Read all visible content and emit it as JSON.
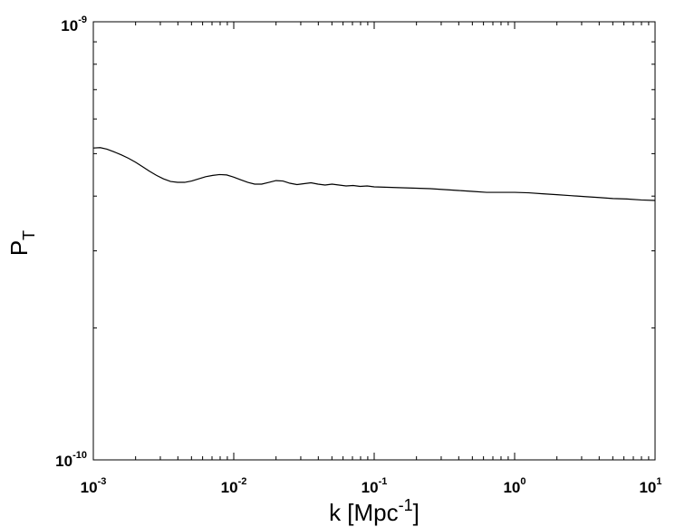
{
  "chart_data": {
    "type": "line",
    "xscale": "log",
    "yscale": "log",
    "xlim": [
      0.001,
      10
    ],
    "ylim": [
      1e-10,
      1e-09
    ],
    "grid": false,
    "x_tick_labels": [
      {
        "base": "10",
        "exp": "-3"
      },
      {
        "base": "10",
        "exp": "-2"
      },
      {
        "base": "10",
        "exp": "-1"
      },
      {
        "base": "10",
        "exp": "0"
      },
      {
        "base": "10",
        "exp": "1"
      }
    ],
    "y_tick_labels": [
      {
        "base": "10",
        "exp": "-10"
      },
      {
        "base": "10",
        "exp": "-9"
      }
    ],
    "xlabel": {
      "main": "k [Mpc",
      "exp": "-1",
      "close": "]"
    },
    "ylabel": {
      "main": "P",
      "sub": "T"
    },
    "series": [
      {
        "color": "#000000",
        "points": [
          [
            0.001,
            5.15e-10
          ],
          [
            0.00112,
            5.16e-10
          ],
          [
            0.00125,
            5.12e-10
          ],
          [
            0.0014,
            5.05e-10
          ],
          [
            0.00158,
            4.97e-10
          ],
          [
            0.00178,
            4.88e-10
          ],
          [
            0.002,
            4.78e-10
          ],
          [
            0.00224,
            4.67e-10
          ],
          [
            0.00251,
            4.56e-10
          ],
          [
            0.00282,
            4.46e-10
          ],
          [
            0.00316,
            4.38e-10
          ],
          [
            0.00355,
            4.32e-10
          ],
          [
            0.00398,
            4.3e-10
          ],
          [
            0.00447,
            4.3e-10
          ],
          [
            0.00501,
            4.33e-10
          ],
          [
            0.00562,
            4.38e-10
          ],
          [
            0.00631,
            4.43e-10
          ],
          [
            0.00708,
            4.46e-10
          ],
          [
            0.00794,
            4.48e-10
          ],
          [
            0.00891,
            4.47e-10
          ],
          [
            0.01,
            4.42e-10
          ],
          [
            0.0112,
            4.36e-10
          ],
          [
            0.0126,
            4.3e-10
          ],
          [
            0.0141,
            4.26e-10
          ],
          [
            0.0158,
            4.26e-10
          ],
          [
            0.0178,
            4.3e-10
          ],
          [
            0.02,
            4.34e-10
          ],
          [
            0.0224,
            4.33e-10
          ],
          [
            0.0251,
            4.28e-10
          ],
          [
            0.0282,
            4.25e-10
          ],
          [
            0.0316,
            4.27e-10
          ],
          [
            0.0355,
            4.29e-10
          ],
          [
            0.0398,
            4.26e-10
          ],
          [
            0.0447,
            4.24e-10
          ],
          [
            0.0501,
            4.26e-10
          ],
          [
            0.0562,
            4.24e-10
          ],
          [
            0.0631,
            4.22e-10
          ],
          [
            0.0708,
            4.23e-10
          ],
          [
            0.0794,
            4.21e-10
          ],
          [
            0.0891,
            4.22e-10
          ],
          [
            0.1,
            4.2e-10
          ],
          [
            0.126,
            4.19e-10
          ],
          [
            0.158,
            4.18e-10
          ],
          [
            0.2,
            4.17e-10
          ],
          [
            0.251,
            4.16e-10
          ],
          [
            0.316,
            4.14e-10
          ],
          [
            0.398,
            4.12e-10
          ],
          [
            0.501,
            4.1e-10
          ],
          [
            0.631,
            4.08e-10
          ],
          [
            0.794,
            4.08e-10
          ],
          [
            1.0,
            4.08e-10
          ],
          [
            1.26,
            4.07e-10
          ],
          [
            1.58,
            4.05e-10
          ],
          [
            2.0,
            4.03e-10
          ],
          [
            2.51,
            4.01e-10
          ],
          [
            3.16,
            3.99e-10
          ],
          [
            3.98,
            3.97e-10
          ],
          [
            5.01,
            3.95e-10
          ],
          [
            6.31,
            3.94e-10
          ],
          [
            7.94,
            3.92e-10
          ],
          [
            10.0,
            3.91e-10
          ]
        ]
      }
    ]
  }
}
